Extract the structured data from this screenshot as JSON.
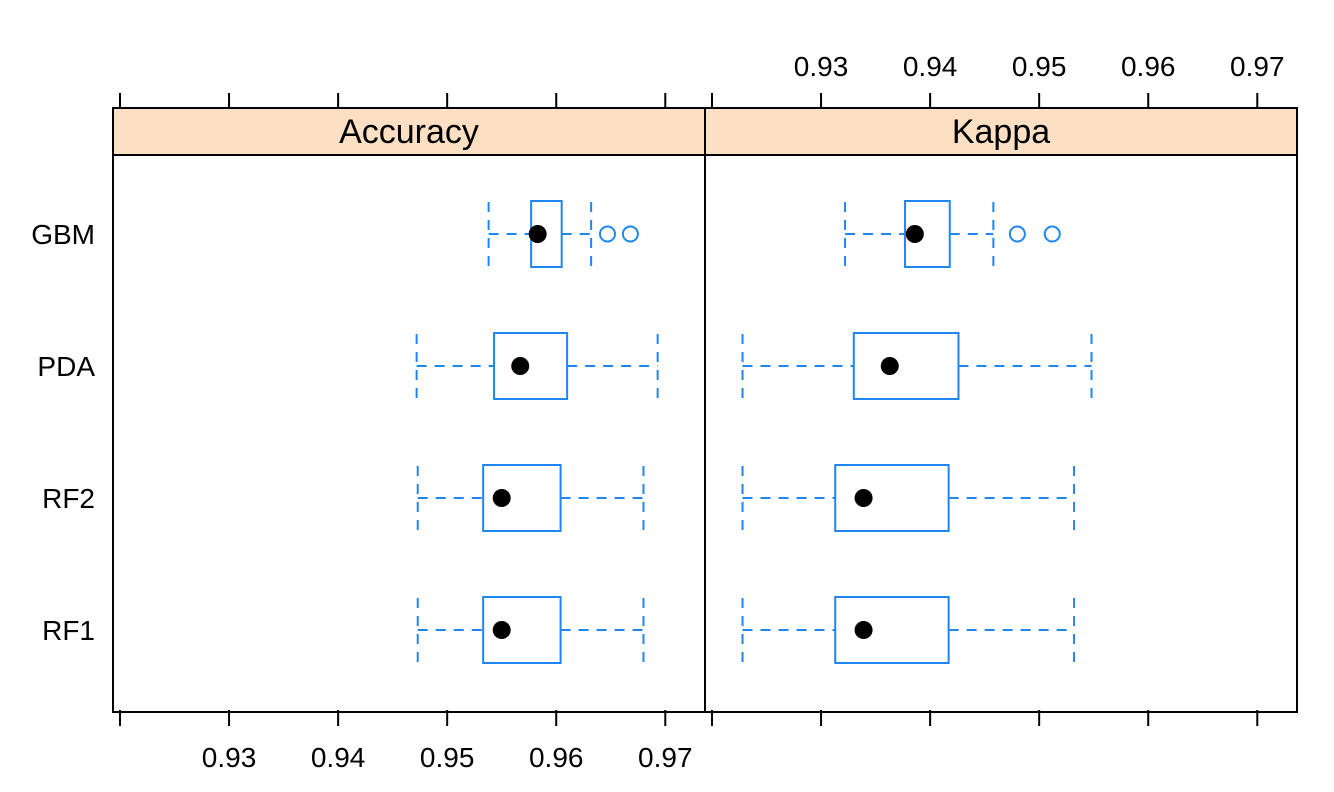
{
  "chart_data": {
    "type": "box",
    "layout": "lattice bwplot, two panels side by side with shared x scale",
    "categories": [
      "GBM",
      "PDA",
      "RF2",
      "RF1"
    ],
    "x_ticks": [
      "0.93",
      "0.94",
      "0.95",
      "0.96",
      "0.97"
    ],
    "xlim": [
      0.92,
      0.973
    ],
    "colors": {
      "box": "#1f86f0",
      "median_dot": "#000000",
      "strip": "#fde0c4",
      "frame": "#000000"
    },
    "panels": [
      {
        "name": "Accuracy",
        "boxes": [
          {
            "label": "GBM",
            "whisker_low": 0.9538,
            "q1": 0.9577,
            "median": 0.9583,
            "q3": 0.9605,
            "whisker_high": 0.9632,
            "outliers": [
              0.9647,
              0.9668
            ]
          },
          {
            "label": "PDA",
            "whisker_low": 0.9472,
            "q1": 0.9543,
            "median": 0.9567,
            "q3": 0.961,
            "whisker_high": 0.9693,
            "outliers": []
          },
          {
            "label": "RF2",
            "whisker_low": 0.9473,
            "q1": 0.9533,
            "median": 0.955,
            "q3": 0.9604,
            "whisker_high": 0.968,
            "outliers": []
          },
          {
            "label": "RF1",
            "whisker_low": 0.9473,
            "q1": 0.9533,
            "median": 0.955,
            "q3": 0.9604,
            "whisker_high": 0.968,
            "outliers": []
          }
        ]
      },
      {
        "name": "Kappa",
        "boxes": [
          {
            "label": "GBM",
            "whisker_low": 0.9322,
            "q1": 0.9377,
            "median": 0.9386,
            "q3": 0.9418,
            "whisker_high": 0.9458,
            "outliers": [
              0.948,
              0.9512
            ]
          },
          {
            "label": "PDA",
            "whisker_low": 0.9228,
            "q1": 0.933,
            "median": 0.9363,
            "q3": 0.9426,
            "whisker_high": 0.9548,
            "outliers": []
          },
          {
            "label": "RF2",
            "whisker_low": 0.9228,
            "q1": 0.9313,
            "median": 0.9339,
            "q3": 0.9417,
            "whisker_high": 0.9532,
            "outliers": []
          },
          {
            "label": "RF1",
            "whisker_low": 0.9228,
            "q1": 0.9313,
            "median": 0.9339,
            "q3": 0.9417,
            "whisker_high": 0.9532,
            "outliers": []
          }
        ]
      }
    ]
  }
}
